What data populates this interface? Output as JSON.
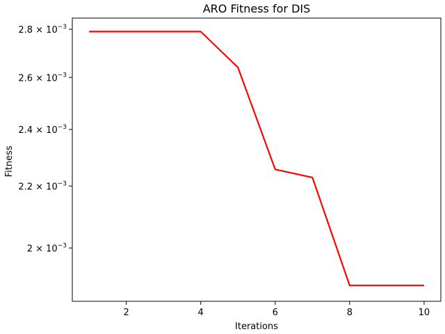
{
  "chart_data": {
    "type": "line",
    "title": "ARO Fitness for DIS",
    "xlabel": "Iterations",
    "ylabel": "Fitness",
    "x_scale": "linear",
    "y_scale": "log",
    "xlim": [
      0.55,
      10.45
    ],
    "ylim": [
      0.0018425,
      0.0028485
    ],
    "grid": false,
    "x_ticks": [
      2,
      4,
      6,
      8,
      10
    ],
    "x_tick_labels": [
      "2",
      "4",
      "6",
      "8",
      "10"
    ],
    "y_ticks": [
      0.002,
      0.0022,
      0.0024,
      0.0026,
      0.0028
    ],
    "y_tick_labels": [
      {
        "mantissa": "2",
        "exponent": "−3"
      },
      {
        "mantissa": "2.2",
        "exponent": "−3"
      },
      {
        "mantissa": "2.4",
        "exponent": "−3"
      },
      {
        "mantissa": "2.6",
        "exponent": "−3"
      },
      {
        "mantissa": "2.8",
        "exponent": "−3"
      }
    ],
    "series": [
      {
        "color": "#ff0000",
        "x": [
          1,
          2,
          3,
          4,
          5,
          6,
          7,
          8,
          9,
          10
        ],
        "values": [
          0.00279,
          0.00279,
          0.00279,
          0.00279,
          0.00264,
          0.002257,
          0.002229,
          0.001888,
          0.001888,
          0.001888
        ]
      }
    ]
  }
}
